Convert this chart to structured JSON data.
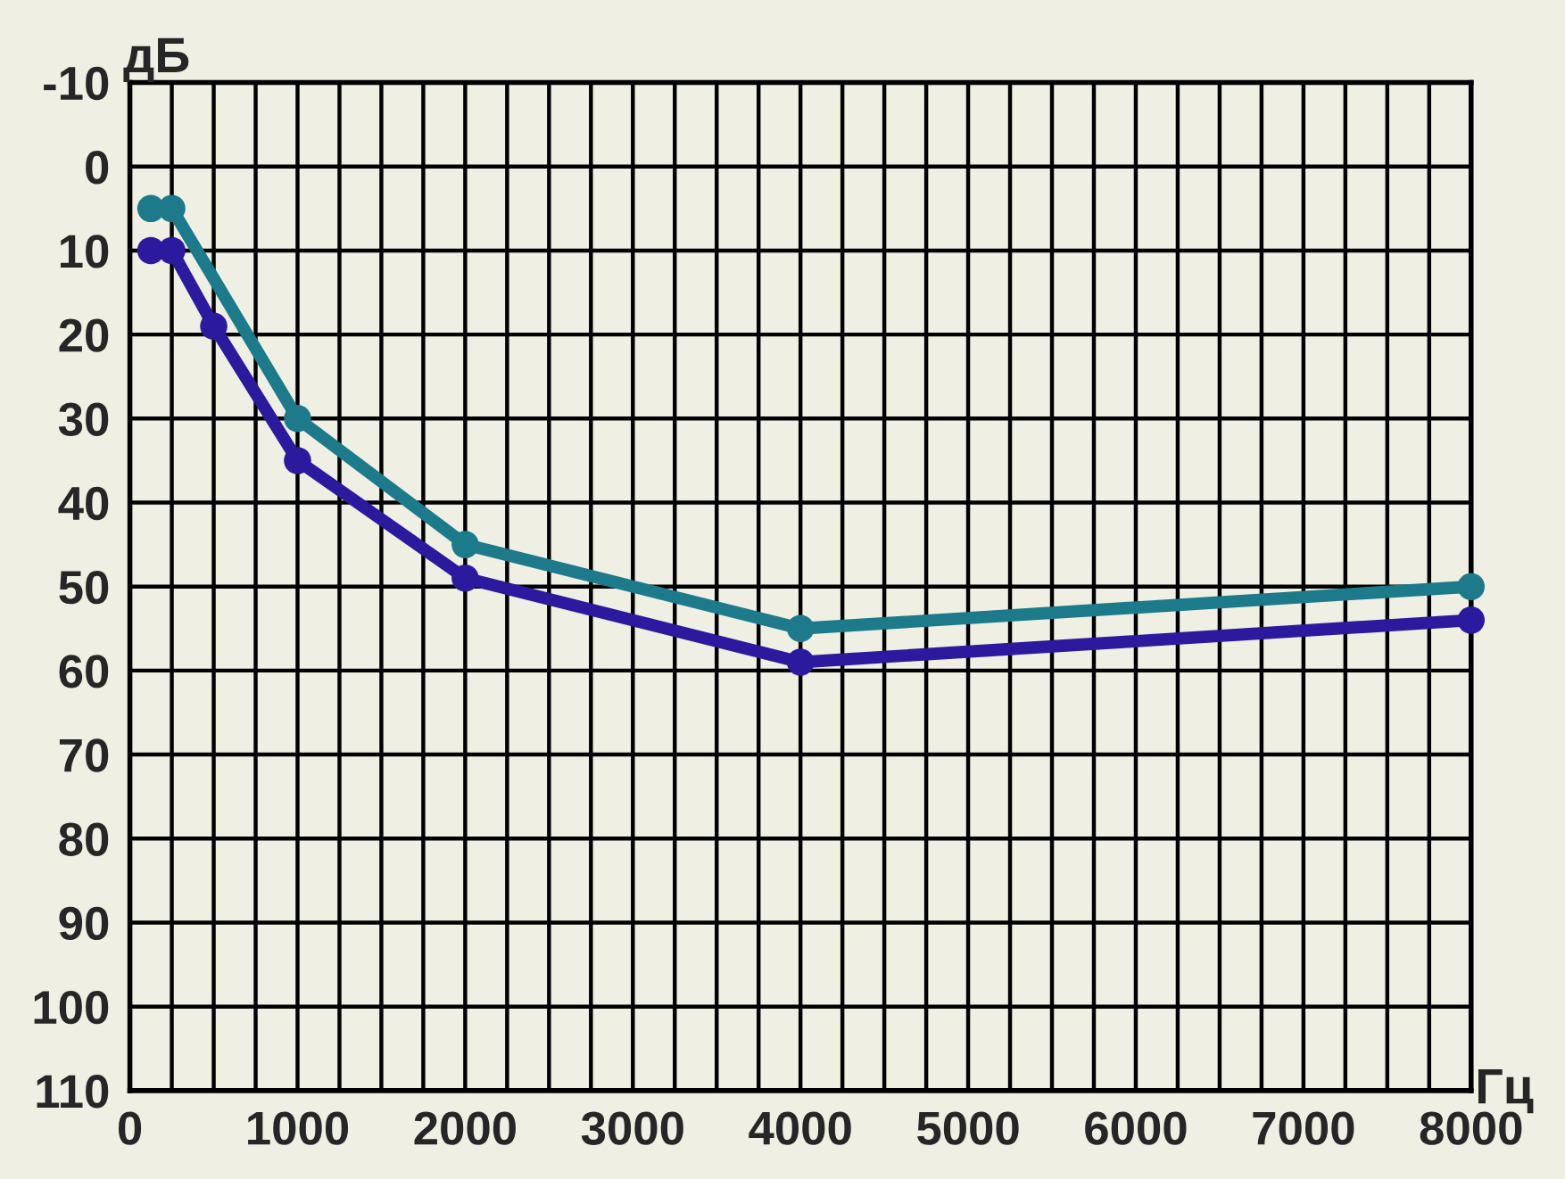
{
  "chart_data": {
    "type": "line",
    "xlabel": "Гц",
    "ylabel": "дБ",
    "series": [
      {
        "color": "#1d7a8a",
        "x": [
          125,
          250,
          1000,
          2000,
          4000,
          8000
        ],
        "values": [
          5,
          5,
          30,
          45,
          55,
          50
        ]
      },
      {
        "color": "#2b1a9e",
        "x": [
          125,
          250,
          500,
          1000,
          2000,
          4000,
          8000
        ],
        "values": [
          10,
          10,
          19,
          35,
          49,
          59,
          54
        ]
      }
    ],
    "xlim": [
      0,
      8000
    ],
    "xticks": [
      0,
      {
        "value": 250,
        "label": null
      },
      {
        "value": 500,
        "label": null
      },
      {
        "value": 750,
        "label": null
      },
      1000,
      {
        "value": 1250,
        "label": null
      },
      {
        "value": 1500,
        "label": null
      },
      {
        "value": 1750,
        "label": null
      },
      2000,
      {
        "value": 2250,
        "label": null
      },
      {
        "value": 2500,
        "label": null
      },
      {
        "value": 2750,
        "label": null
      },
      3000,
      {
        "value": 3250,
        "label": null
      },
      {
        "value": 3500,
        "label": null
      },
      {
        "value": 3750,
        "label": null
      },
      4000,
      {
        "value": 4250,
        "label": null
      },
      {
        "value": 4500,
        "label": null
      },
      {
        "value": 4750,
        "label": null
      },
      5000,
      {
        "value": 5250,
        "label": null
      },
      {
        "value": 5500,
        "label": null
      },
      {
        "value": 5750,
        "label": null
      },
      6000,
      {
        "value": 6250,
        "label": null
      },
      {
        "value": 6500,
        "label": null
      },
      {
        "value": 6750,
        "label": null
      },
      7000,
      {
        "value": 7250,
        "label": null
      },
      {
        "value": 7500,
        "label": null
      },
      {
        "value": 7750,
        "label": null
      },
      8000
    ],
    "ylim": [
      110,
      -10
    ],
    "yticks": [
      -10,
      0,
      10,
      20,
      30,
      40,
      50,
      60,
      70,
      80,
      90,
      100,
      110
    ],
    "grid": true,
    "marker": "circle",
    "line_style": "solid"
  }
}
